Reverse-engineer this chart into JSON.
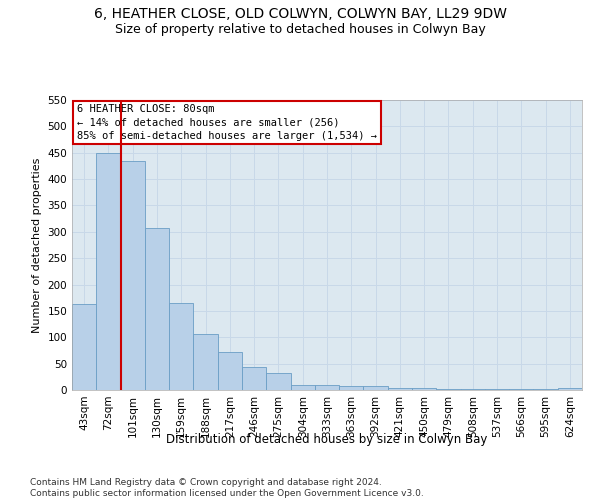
{
  "title1": "6, HEATHER CLOSE, OLD COLWYN, COLWYN BAY, LL29 9DW",
  "title2": "Size of property relative to detached houses in Colwyn Bay",
  "xlabel": "Distribution of detached houses by size in Colwyn Bay",
  "ylabel": "Number of detached properties",
  "categories": [
    "43sqm",
    "72sqm",
    "101sqm",
    "130sqm",
    "159sqm",
    "188sqm",
    "217sqm",
    "246sqm",
    "275sqm",
    "304sqm",
    "333sqm",
    "363sqm",
    "392sqm",
    "421sqm",
    "450sqm",
    "479sqm",
    "508sqm",
    "537sqm",
    "566sqm",
    "595sqm",
    "624sqm"
  ],
  "values": [
    163,
    450,
    435,
    307,
    165,
    106,
    73,
    43,
    32,
    10,
    10,
    8,
    8,
    4,
    3,
    2,
    2,
    2,
    2,
    2,
    4
  ],
  "bar_color": "#b8d0e8",
  "bar_edge_color": "#6a9ec5",
  "vline_x": 1.5,
  "vline_color": "#cc0000",
  "annotation_text": "6 HEATHER CLOSE: 80sqm\n← 14% of detached houses are smaller (256)\n85% of semi-detached houses are larger (1,534) →",
  "annotation_box_color": "#ffffff",
  "annotation_box_edge": "#cc0000",
  "ylim": [
    0,
    550
  ],
  "yticks": [
    0,
    50,
    100,
    150,
    200,
    250,
    300,
    350,
    400,
    450,
    500,
    550
  ],
  "footer": "Contains HM Land Registry data © Crown copyright and database right 2024.\nContains public sector information licensed under the Open Government Licence v3.0.",
  "background_color": "#ffffff",
  "grid_color": "#c8d8e8",
  "axes_bg_color": "#dce8f0",
  "title1_fontsize": 10,
  "title2_fontsize": 9,
  "xlabel_fontsize": 8.5,
  "ylabel_fontsize": 8,
  "tick_fontsize": 7.5,
  "annotation_fontsize": 7.5,
  "footer_fontsize": 6.5
}
